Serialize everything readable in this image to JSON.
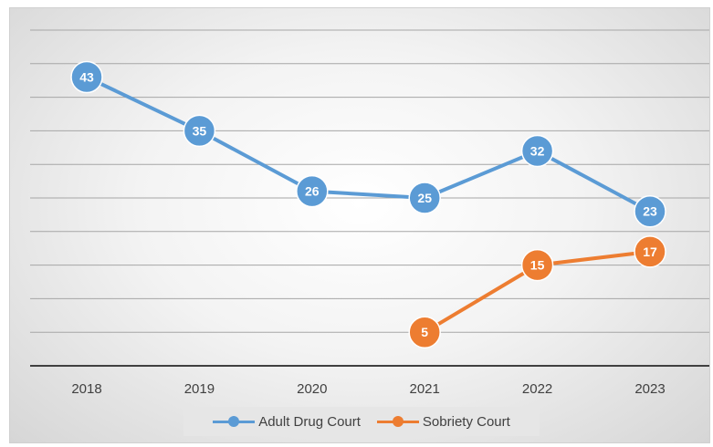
{
  "chart_data": {
    "type": "line",
    "categories": [
      "2018",
      "2019",
      "2020",
      "2021",
      "2022",
      "2023"
    ],
    "series": [
      {
        "name": "Adult Drug Court",
        "color": "#5b9bd5",
        "values": [
          43,
          35,
          26,
          25,
          32,
          23
        ]
      },
      {
        "name": "Sobriety Court",
        "color": "#ed7d31",
        "values": [
          null,
          null,
          null,
          5,
          15,
          17
        ]
      }
    ],
    "ylim": [
      0,
      50
    ],
    "grid": true,
    "legend_position": "bottom",
    "data_labels": true
  }
}
